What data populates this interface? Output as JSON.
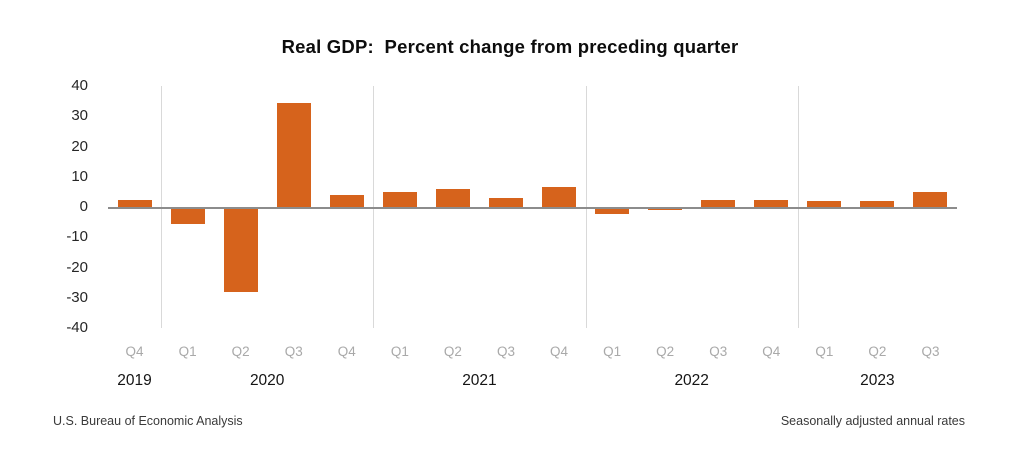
{
  "title": "Real GDP:  Percent change from preceding quarter",
  "footer": {
    "left": "U.S. Bureau of Economic Analysis",
    "right": "Seasonally adjusted annual rates"
  },
  "colors": {
    "bar": "#d6631c",
    "zero_axis_line": "#8c8c8c",
    "year_gridline": "#d9d9d9",
    "quarter_label": "#a9a9a9",
    "year_label": "#141414",
    "ytick_label": "#262626",
    "background": "#ffffff"
  },
  "chart_data": {
    "type": "bar",
    "title": "Real GDP:  Percent change from preceding quarter",
    "xlabel": "",
    "ylabel": "",
    "ylim": [
      -40,
      40
    ],
    "y_ticks": [
      40,
      30,
      20,
      10,
      0,
      -10,
      -20,
      -30,
      -40
    ],
    "grid": "vertical separators between years only; single gray zero axis line; no horizontal gridlines",
    "legend": "none",
    "bar_color": "#d6631c",
    "points": [
      {
        "year": "2019",
        "quarter": "Q4",
        "value": 2.6
      },
      {
        "year": "2020",
        "quarter": "Q1",
        "value": -5.3
      },
      {
        "year": "2020",
        "quarter": "Q2",
        "value": -28.0
      },
      {
        "year": "2020",
        "quarter": "Q3",
        "value": 34.8
      },
      {
        "year": "2020",
        "quarter": "Q4",
        "value": 4.2
      },
      {
        "year": "2021",
        "quarter": "Q1",
        "value": 5.2
      },
      {
        "year": "2021",
        "quarter": "Q2",
        "value": 6.2
      },
      {
        "year": "2021",
        "quarter": "Q3",
        "value": 3.3
      },
      {
        "year": "2021",
        "quarter": "Q4",
        "value": 7.0
      },
      {
        "year": "2022",
        "quarter": "Q1",
        "value": -2.0
      },
      {
        "year": "2022",
        "quarter": "Q2",
        "value": -0.6
      },
      {
        "year": "2022",
        "quarter": "Q3",
        "value": 2.7
      },
      {
        "year": "2022",
        "quarter": "Q4",
        "value": 2.6
      },
      {
        "year": "2023",
        "quarter": "Q1",
        "value": 2.2
      },
      {
        "year": "2023",
        "quarter": "Q2",
        "value": 2.1
      },
      {
        "year": "2023",
        "quarter": "Q3",
        "value": 5.2
      }
    ]
  }
}
